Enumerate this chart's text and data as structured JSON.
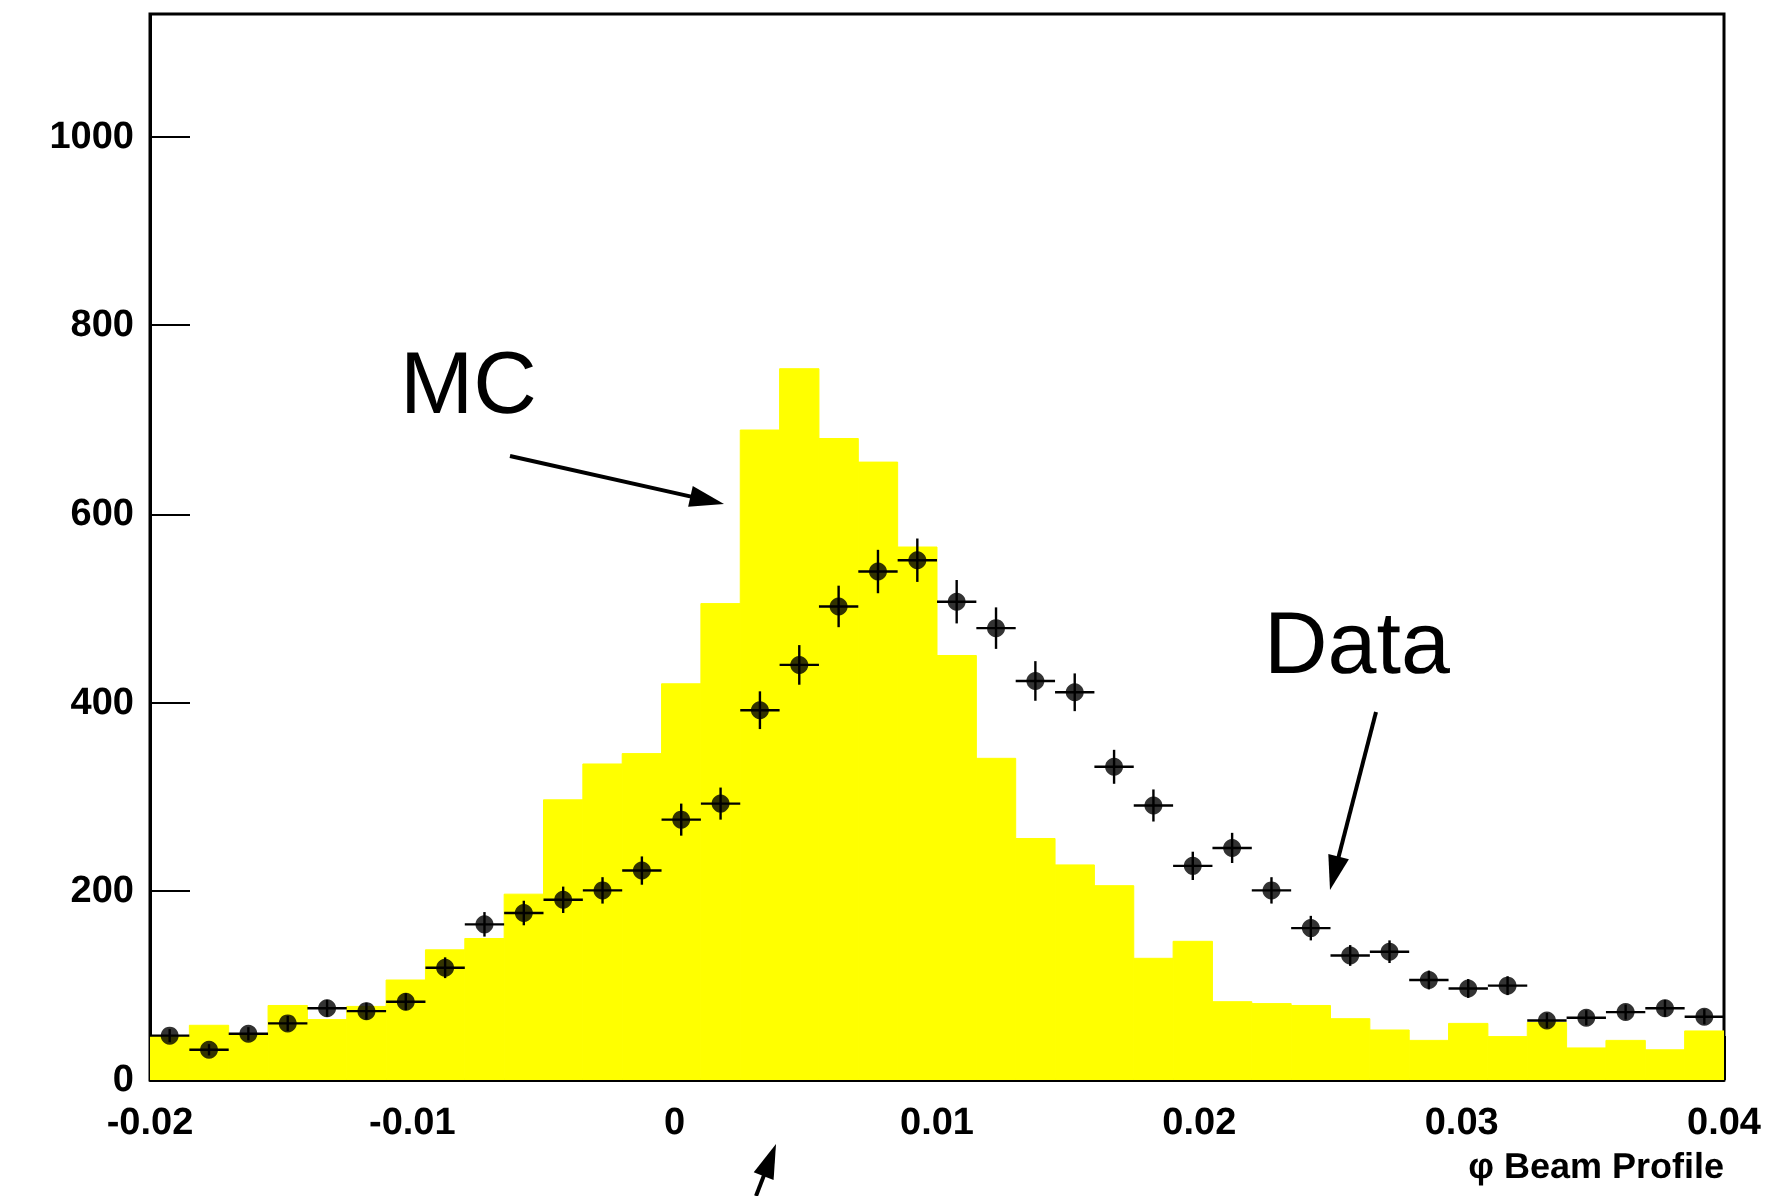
{
  "chart_data": {
    "type": "histogram",
    "xlabel": "φ Beam Profile",
    "xlim": [
      -0.02,
      0.04
    ],
    "xticks": [
      -0.02,
      -0.01,
      0,
      0.01,
      0.02,
      0.03,
      0.04
    ],
    "ylim": [
      0,
      1130
    ],
    "yticks": [
      0,
      200,
      400,
      600,
      800,
      1000
    ],
    "grid": false,
    "annotations": [
      "MC",
      "Data"
    ],
    "bins": [
      -0.02,
      -0.0185,
      -0.017,
      -0.0155,
      -0.014,
      -0.0125,
      -0.011,
      -0.0095,
      -0.008,
      -0.0065,
      -0.005,
      -0.0035,
      -0.002,
      -0.0005,
      0.001,
      0.0025,
      0.004,
      0.0055,
      0.007,
      0.0085,
      0.01,
      0.0115,
      0.013,
      0.0145,
      0.016,
      0.0175,
      0.019,
      0.0205,
      0.022,
      0.0235,
      0.025,
      0.0265,
      0.028,
      0.0295,
      0.031,
      0.0325,
      0.034,
      0.0355,
      0.037,
      0.0385,
      0.04
    ],
    "series": [
      {
        "color": "#ffff00",
        "values": [
          46,
          58,
          48,
          79,
          64,
          78,
          106,
          138,
          150,
          197,
          297,
          335,
          346,
          420,
          505,
          689,
          754,
          680,
          655,
          565,
          450,
          341,
          256,
          228,
          206,
          129,
          147,
          83,
          81,
          79,
          65,
          53,
          42,
          60,
          46,
          61,
          34,
          42,
          32,
          52
        ]
      },
      {
        "type": "scatter",
        "color": "#000000",
        "marker": "circle",
        "x": [
          -0.01925,
          -0.01775,
          -0.01625,
          -0.01475,
          -0.01325,
          -0.01175,
          -0.01025,
          -0.00875,
          -0.00725,
          -0.00575,
          -0.00425,
          -0.00275,
          -0.00125,
          0.00025,
          0.00175,
          0.00325,
          0.00475,
          0.00625,
          0.00775,
          0.00925,
          0.01075,
          0.01225,
          0.01375,
          0.01525,
          0.01675,
          0.01825,
          0.01975,
          0.02125,
          0.02275,
          0.02425,
          0.02575,
          0.02725,
          0.02875,
          0.03025,
          0.03175,
          0.03325,
          0.03475,
          0.03625,
          0.03775,
          0.03925
        ],
        "values": [
          47,
          32,
          49,
          60,
          76,
          73,
          83,
          119,
          165,
          177,
          191,
          201,
          222,
          276,
          293,
          392,
          440,
          502,
          539,
          551,
          507,
          479,
          423,
          411,
          332,
          291,
          227,
          246,
          201,
          161,
          132,
          136,
          106,
          97,
          100,
          63,
          66,
          72,
          76,
          67
        ],
        "errors": [
          7,
          6,
          7,
          8,
          9,
          9,
          9,
          11,
          13,
          13,
          14,
          14,
          15,
          17,
          17,
          20,
          21,
          22,
          23,
          23,
          23,
          22,
          21,
          20,
          18,
          17,
          15,
          16,
          14,
          13,
          11,
          12,
          10,
          10,
          10,
          8,
          8,
          8,
          9,
          8
        ],
        "xerrors": [
          0.00075,
          0.00075,
          0.00075,
          0.00075,
          0.00075,
          0.00075,
          0.00075,
          0.00075,
          0.00075,
          0.00075,
          0.00075,
          0.00075,
          0.00075,
          0.00075,
          0.00075,
          0.00075,
          0.00075,
          0.00075,
          0.00075,
          0.00075,
          0.00075,
          0.00075,
          0.00075,
          0.00075,
          0.00075,
          0.00075,
          0.00075,
          0.00075,
          0.00075,
          0.00075,
          0.00075,
          0.00075,
          0.00075,
          0.00075,
          0.00075,
          0.00075,
          0.00075,
          0.00075,
          0.00075,
          0.00075
        ]
      }
    ]
  }
}
